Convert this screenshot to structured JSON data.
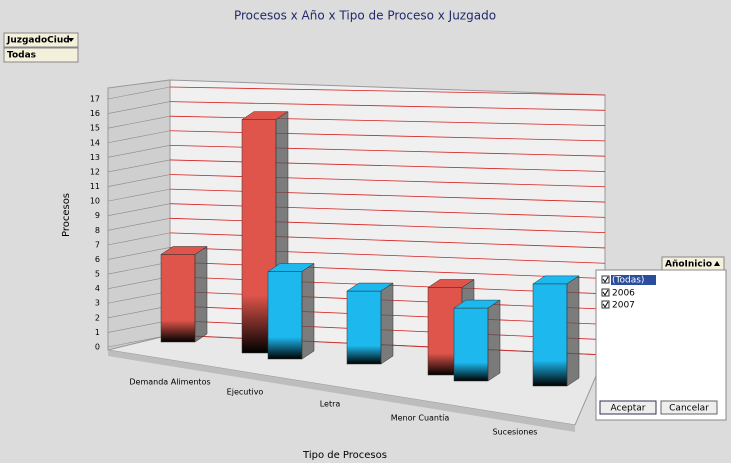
{
  "chart_data": {
    "type": "bar3d",
    "title": "Procesos x Año x Tipo de Proceso x Juzgado",
    "y_label": "Procesos",
    "x_label": "Tipo de Procesos",
    "categories": [
      "Demanda Alimentos",
      "Ejecutivo",
      "Letra",
      "Menor Cuantía",
      "Sucesiones"
    ],
    "series": [
      {
        "name": "2006",
        "color": "#e0554b",
        "values": [
          6,
          16,
          null,
          6,
          null
        ]
      },
      {
        "name": "2007",
        "color": "#1cb8ee",
        "values": [
          null,
          6,
          5,
          5,
          7
        ]
      }
    ],
    "ylim": [
      0,
      17
    ],
    "yticks": [
      0,
      1,
      2,
      3,
      4,
      5,
      6,
      7,
      8,
      9,
      10,
      11,
      12,
      13,
      14,
      15,
      16,
      17
    ],
    "grid": true
  },
  "filters": {
    "page_field": "JuzgadoCiud",
    "page_value": "Todas",
    "series_field": "AñoInicio",
    "all_item": "(Todas)",
    "ok_button": "Aceptar",
    "cancel_button": "Cancelar"
  }
}
